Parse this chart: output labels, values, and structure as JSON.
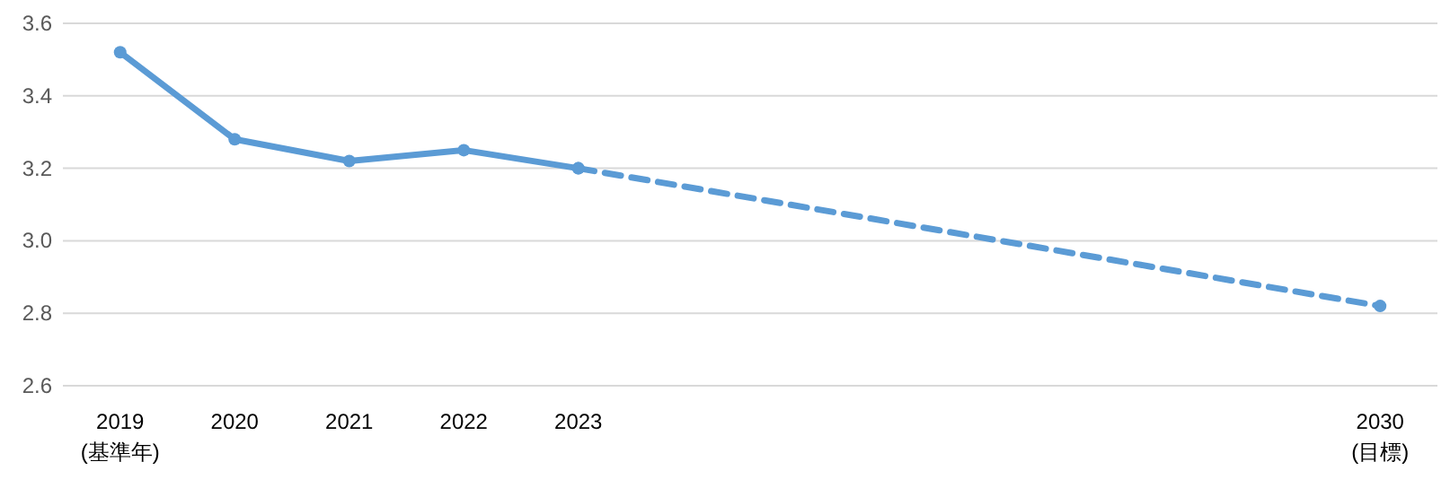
{
  "chart_data": {
    "type": "line",
    "xlim": [
      2018.5,
      2030.5
    ],
    "xticks": [
      {
        "value": 2019,
        "label": "2019\n(基準年)"
      },
      2020,
      2021,
      2022,
      2023,
      {
        "value": 2030,
        "label": "2030\n(目標)"
      }
    ],
    "ylim": [
      2.6,
      3.6
    ],
    "yticks": [
      {
        "value": 2.6,
        "label": "2.6"
      },
      {
        "value": 2.8,
        "label": "2.8"
      },
      {
        "value": 3.0,
        "label": "3.0"
      },
      {
        "value": 3.2,
        "label": "3.2"
      },
      {
        "value": 3.4,
        "label": "3.4"
      },
      {
        "value": 3.6,
        "label": "3.6"
      }
    ],
    "grid": "y",
    "marker": "circle",
    "series": [
      {
        "color": "#5b9bd5",
        "line_style": "solid",
        "x": [
          2019,
          2020,
          2021,
          2022,
          2023
        ],
        "values": [
          3.52,
          3.28,
          3.22,
          3.25,
          3.2
        ]
      },
      {
        "color": "#5b9bd5",
        "line_style": "dashed",
        "x": [
          2023,
          2030
        ],
        "values": [
          3.2,
          2.82
        ]
      }
    ]
  }
}
